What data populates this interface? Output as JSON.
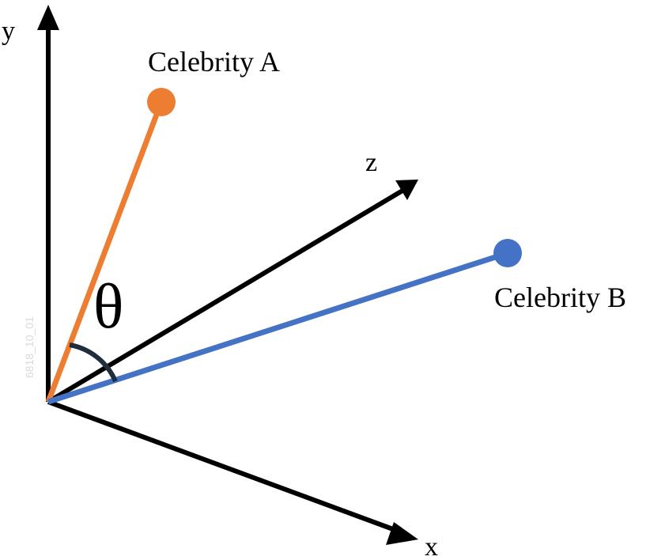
{
  "axes": {
    "y_label": "y",
    "x_label": "x",
    "z_label": "z"
  },
  "vectors": {
    "a": {
      "label": "Celebrity A",
      "color": "#ed7d31"
    },
    "b": {
      "label": "Celebrity B",
      "color": "#4472c4"
    }
  },
  "angle": {
    "symbol": "θ",
    "arc_color": "#1f2d3d"
  },
  "axis_color": "#000000",
  "watermark": "6818_10_01"
}
